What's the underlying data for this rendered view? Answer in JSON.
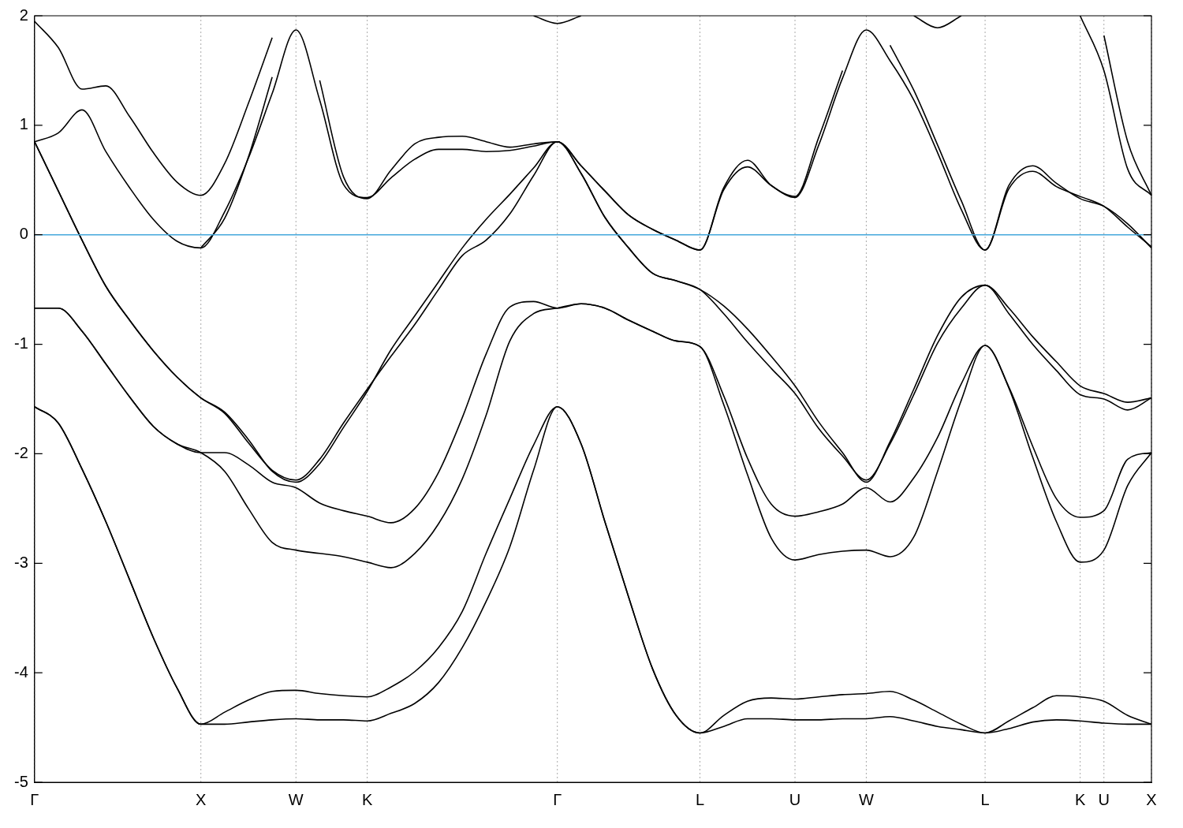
{
  "chart_data": {
    "type": "line",
    "categories": [
      "Γ",
      null,
      null,
      null,
      null,
      null,
      null,
      "X",
      null,
      null,
      null,
      "W",
      null,
      null,
      "K",
      null,
      null,
      null,
      null,
      null,
      null,
      null,
      "Γ",
      null,
      null,
      null,
      null,
      null,
      "L",
      null,
      null,
      null,
      "U",
      null,
      null,
      "W",
      null,
      null,
      null,
      null,
      "L",
      null,
      null,
      null,
      "K",
      "U",
      null,
      "X"
    ],
    "ylim": [
      -5,
      2
    ],
    "yticks": [
      -5,
      -4,
      -3,
      -2,
      -1,
      0,
      1,
      2
    ],
    "grid": "x",
    "legend": false,
    "marker": "none",
    "line_style": "solid",
    "ref_lines": [
      {
        "axis": "y",
        "value": 0,
        "color": "#45a8dc"
      }
    ],
    "series": [
      {
        "color": "#000000",
        "values": [
          -1.57,
          -1.72,
          -2.14,
          -2.62,
          -3.15,
          -3.68,
          -4.14,
          -4.47,
          -4.47,
          -4.45,
          -4.43,
          -4.42,
          -4.43,
          -4.43,
          -4.44,
          -4.37,
          -4.28,
          -4.09,
          -3.77,
          -3.35,
          -2.85,
          -2.15,
          -1.57,
          -1.91,
          -2.62,
          -3.31,
          -3.96,
          -4.39,
          -4.55,
          -4.49,
          -4.42,
          -4.42,
          -4.43,
          -4.43,
          -4.42,
          -4.42,
          -4.4,
          -4.44,
          -4.49,
          -4.52,
          -4.55,
          -4.51,
          -4.45,
          -4.43,
          -4.44,
          -4.46,
          -4.47,
          -4.47
        ]
      },
      {
        "color": "#000000",
        "values": [
          -1.57,
          -1.72,
          -2.14,
          -2.62,
          -3.15,
          -3.68,
          -4.14,
          -4.47,
          -4.36,
          -4.25,
          -4.17,
          -4.16,
          -4.19,
          -4.21,
          -4.22,
          -4.13,
          -3.99,
          -3.77,
          -3.44,
          -2.91,
          -2.41,
          -1.92,
          -1.57,
          -1.91,
          -2.62,
          -3.31,
          -3.96,
          -4.39,
          -4.55,
          -4.39,
          -4.26,
          -4.23,
          -4.24,
          -4.22,
          -4.2,
          -4.19,
          -4.17,
          -4.25,
          -4.36,
          -4.47,
          -4.55,
          -4.44,
          -4.32,
          -4.21,
          -4.22,
          -4.26,
          -4.39,
          -4.47
        ]
      },
      {
        "color": "#000000",
        "values": [
          -0.67,
          -0.67,
          -0.88,
          -1.18,
          -1.48,
          -1.75,
          -1.91,
          -1.99,
          -2.16,
          -2.5,
          -2.81,
          -2.88,
          -2.91,
          -2.94,
          -2.99,
          -3.04,
          -2.91,
          -2.64,
          -2.23,
          -1.65,
          -0.97,
          -0.72,
          -0.67,
          -0.63,
          -0.67,
          -0.78,
          -0.88,
          -0.97,
          -1.02,
          -1.55,
          -2.19,
          -2.77,
          -2.97,
          -2.92,
          -2.89,
          -2.88,
          -2.94,
          -2.76,
          -2.16,
          -1.51,
          -1.01,
          -1.4,
          -2.03,
          -2.62,
          -2.99,
          -2.88,
          -2.29,
          -1.99
        ]
      },
      {
        "color": "#000000",
        "values": [
          -0.67,
          -0.67,
          -0.88,
          -1.18,
          -1.48,
          -1.75,
          -1.91,
          -1.99,
          -1.99,
          -2.1,
          -2.26,
          -2.31,
          -2.45,
          -2.52,
          -2.57,
          -2.63,
          -2.5,
          -2.17,
          -1.67,
          -1.09,
          -0.66,
          -0.61,
          -0.67,
          -0.63,
          -0.67,
          -0.78,
          -0.88,
          -0.97,
          -1.02,
          -1.47,
          -2.04,
          -2.46,
          -2.57,
          -2.53,
          -2.46,
          -2.31,
          -2.44,
          -2.22,
          -1.85,
          -1.36,
          -1.01,
          -1.39,
          -1.93,
          -2.41,
          -2.58,
          -2.52,
          -2.05,
          -1.99
        ]
      },
      {
        "color": "#000000",
        "values": [
          0.85,
          0.4,
          -0.05,
          -0.47,
          -0.78,
          -1.06,
          -1.3,
          -1.49,
          -1.63,
          -1.9,
          -2.15,
          -2.24,
          -2.05,
          -1.72,
          -1.41,
          -1.11,
          -0.82,
          -0.5,
          -0.19,
          -0.05,
          0.19,
          0.54,
          0.85,
          0.56,
          0.16,
          -0.12,
          -0.35,
          -0.42,
          -0.5,
          -0.72,
          -0.98,
          -1.22,
          -1.45,
          -1.77,
          -2.02,
          -2.24,
          -1.91,
          -1.46,
          -0.99,
          -0.67,
          -0.46,
          -0.72,
          -1.0,
          -1.24,
          -1.46,
          -1.5,
          -1.6,
          -1.49
        ]
      },
      {
        "color": "#000000",
        "values": [
          0.85,
          0.4,
          -0.05,
          -0.47,
          -0.78,
          -1.06,
          -1.3,
          -1.49,
          -1.62,
          -1.87,
          -2.16,
          -2.26,
          -2.09,
          -1.76,
          -1.43,
          -1.05,
          -0.74,
          -0.43,
          -0.12,
          0.14,
          0.37,
          0.61,
          0.85,
          0.56,
          0.16,
          -0.12,
          -0.35,
          -0.42,
          -0.5,
          -0.65,
          -0.86,
          -1.11,
          -1.38,
          -1.71,
          -1.99,
          -2.26,
          -1.89,
          -1.41,
          -0.92,
          -0.57,
          -0.46,
          -0.67,
          -0.93,
          -1.16,
          -1.38,
          -1.45,
          -1.53,
          -1.49
        ]
      },
      {
        "color": "#000000",
        "values": [
          0.85,
          0.93,
          1.14,
          0.76,
          0.43,
          0.14,
          -0.06,
          -0.12,
          0.21,
          0.7,
          1.29,
          1.87,
          1.23,
          0.46,
          0.34,
          0.52,
          0.69,
          0.78,
          0.78,
          0.76,
          0.77,
          0.81,
          0.85,
          0.63,
          0.4,
          0.18,
          0.05,
          -0.05,
          -0.14,
          0.41,
          0.62,
          0.45,
          0.34,
          0.82,
          1.43,
          1.87,
          1.59,
          1.23,
          0.75,
          0.23,
          -0.14,
          0.42,
          0.58,
          0.44,
          0.35,
          0.26,
          0.07,
          -0.11
        ]
      },
      {
        "color": "#000000",
        "values": [
          1.95,
          1.71,
          1.33,
          1.36,
          1.08,
          0.75,
          0.48,
          0.36,
          0.65,
          1.2,
          1.8,
          null,
          1.41,
          0.53,
          0.33,
          0.59,
          0.83,
          0.89,
          0.9,
          0.85,
          0.8,
          0.83,
          0.85,
          0.63,
          0.4,
          0.18,
          0.05,
          -0.05,
          -0.14,
          0.43,
          0.68,
          0.45,
          0.35,
          0.89,
          1.5,
          null,
          1.73,
          1.32,
          0.82,
          0.31,
          -0.14,
          0.45,
          0.63,
          0.47,
          0.33,
          0.26,
          0.1,
          -0.12
        ]
      },
      {
        "color": "#000000",
        "values": [
          null,
          null,
          null,
          null,
          null,
          null,
          null,
          -0.12,
          0.15,
          0.71,
          1.44,
          null,
          null,
          null,
          null,
          null,
          null,
          null,
          null,
          null,
          null,
          2.0,
          1.93,
          2.0,
          null,
          null,
          null,
          null,
          null,
          null,
          null,
          null,
          null,
          null,
          null,
          null,
          null,
          2.0,
          1.89,
          2.0,
          null,
          null,
          null,
          null,
          2.0,
          1.5,
          0.6,
          0.36
        ]
      },
      {
        "color": "#000000",
        "values": [
          null,
          null,
          null,
          null,
          null,
          null,
          null,
          null,
          null,
          null,
          null,
          null,
          null,
          null,
          null,
          null,
          null,
          null,
          null,
          null,
          null,
          null,
          null,
          null,
          null,
          null,
          null,
          null,
          null,
          null,
          null,
          null,
          null,
          null,
          null,
          null,
          null,
          null,
          null,
          null,
          null,
          null,
          null,
          null,
          null,
          1.82,
          0.85,
          0.36
        ]
      }
    ]
  }
}
